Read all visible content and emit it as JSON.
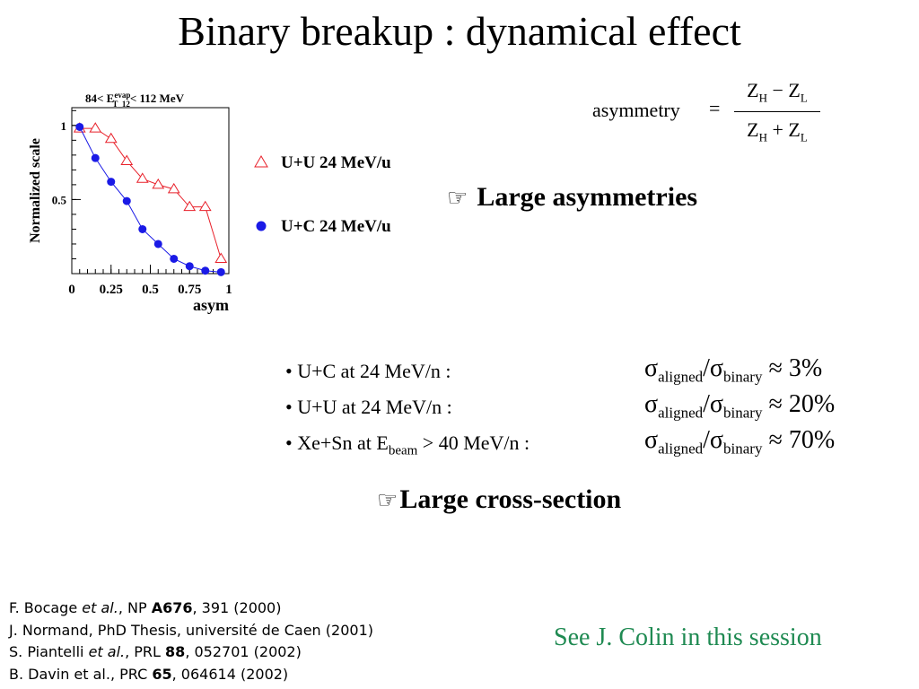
{
  "title": "Binary breakup : dynamical effect",
  "chart_data": {
    "type": "line",
    "title": "84< E",
    "title_sub": "T_12",
    "title_sup": "evap",
    "title_end": "< 112 MeV",
    "xlabel": "asym",
    "ylabel": "Normalized scale",
    "xlim": [
      0,
      1
    ],
    "ylim": [
      0,
      1.12
    ],
    "xticks": [
      {
        "v": 0,
        "label": "0"
      },
      {
        "v": 0.25,
        "label": "0.25"
      },
      {
        "v": 0.5,
        "label": "0.5"
      },
      {
        "v": 0.75,
        "label": "0.75"
      },
      {
        "v": 1,
        "label": "1"
      }
    ],
    "yticks": [
      {
        "v": 0.5,
        "label": "0.5"
      },
      {
        "v": 1,
        "label": "1"
      }
    ],
    "legend_position": "right",
    "series": [
      {
        "name": "U+U 24 MeV/u",
        "marker": "open-triangle",
        "color": "#e8202a",
        "x": [
          0.05,
          0.15,
          0.25,
          0.35,
          0.45,
          0.55,
          0.65,
          0.75,
          0.85,
          0.95
        ],
        "y": [
          0.98,
          0.98,
          0.91,
          0.76,
          0.64,
          0.6,
          0.57,
          0.45,
          0.45,
          0.1
        ]
      },
      {
        "name": "U+C 24 MeV/u",
        "marker": "filled-circle",
        "color": "#1a1ae6",
        "x": [
          0.05,
          0.15,
          0.25,
          0.35,
          0.45,
          0.55,
          0.65,
          0.75,
          0.85,
          0.95
        ],
        "y": [
          0.99,
          0.78,
          0.62,
          0.49,
          0.3,
          0.2,
          0.1,
          0.05,
          0.02,
          0.01
        ]
      }
    ]
  },
  "formula": {
    "lhs": "asymmetry",
    "eq": "=",
    "num_z1": "Z",
    "num_s1": "H",
    "num_op": "−",
    "num_z2": "Z",
    "num_s2": "L",
    "den_z1": "Z",
    "den_s1": "H",
    "den_op": "+",
    "den_z2": "Z",
    "den_s2": "L"
  },
  "hand_icon": "☞",
  "point1": "Large asymmetries",
  "comparisons": [
    {
      "pre": "• U+C at 24 MeV/n :",
      "sub": "",
      "post": "",
      "s1": "aligned",
      "s2": "binary",
      "approx": " ≈ 3%"
    },
    {
      "pre": "• U+U at 24 MeV/n :",
      "sub": "",
      "post": "",
      "s1": "aligned",
      "s2": "binary",
      "approx": " ≈ 20%"
    },
    {
      "pre": "• Xe+Sn at E",
      "sub": "beam",
      "post": " > 40 MeV/n :",
      "s1": "aligned",
      "s2": "binary",
      "approx": " ≈ 70%"
    }
  ],
  "sigma": "σ",
  "slash": "/",
  "point2": "Large cross-section",
  "refs": [
    {
      "a": "F. Bocage ",
      "i": "et al.",
      "b": ", NP ",
      "bold": "A676",
      "c": ", 391 (2000)"
    },
    {
      "a": "J. Normand, PhD Thesis, université de Caen (2001)",
      "i": "",
      "b": "",
      "bold": "",
      "c": ""
    },
    {
      "a": "S. Piantelli ",
      "i": "et al.",
      "b": ", PRL ",
      "bold": "88",
      "c": ", 052701 (2002)"
    },
    {
      "a": "B. Davin et al., PRC ",
      "i": "",
      "b": "",
      "bold": "65",
      "c": ", 064614 (2002)"
    }
  ],
  "see_also": "See J. Colin in this session"
}
